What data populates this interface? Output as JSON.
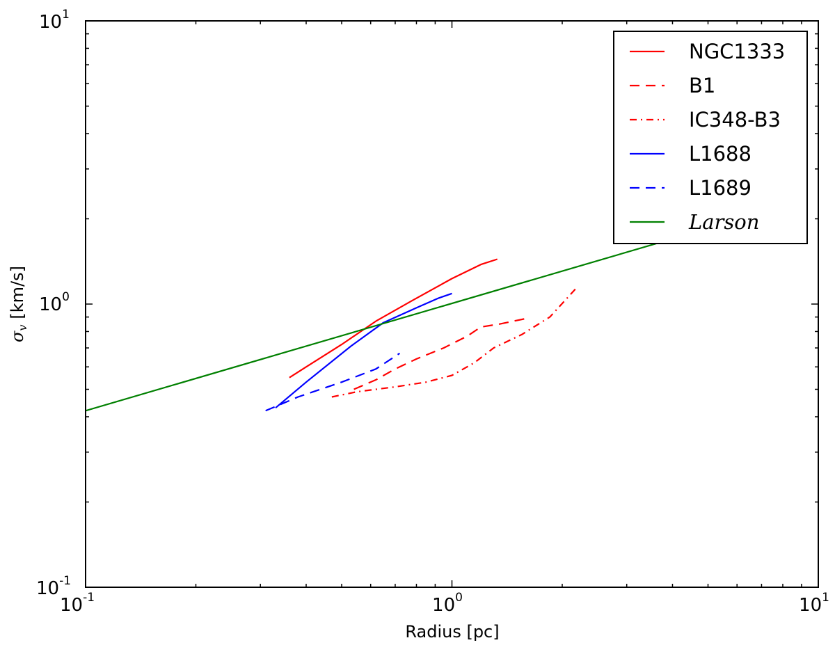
{
  "chart_data": {
    "type": "line",
    "title": "",
    "xlabel": "Radius [pc]",
    "ylabel_symbol": "σ",
    "ylabel_subscript": "v",
    "ylabel_units": "[km/s]",
    "xscale": "log",
    "yscale": "log",
    "xlim": [
      0.1,
      10
    ],
    "ylim": [
      0.1,
      10
    ],
    "x_tick_labels": [
      {
        "value": 0.1,
        "base": "10",
        "exp": "-1"
      },
      {
        "value": 1,
        "base": "10",
        "exp": "0"
      },
      {
        "value": 10,
        "base": "10",
        "exp": "1"
      }
    ],
    "y_tick_labels": [
      {
        "value": 0.1,
        "base": "10",
        "exp": "-1"
      },
      {
        "value": 1,
        "base": "10",
        "exp": "0"
      },
      {
        "value": 10,
        "base": "10",
        "exp": "1"
      }
    ],
    "legend_position": "upper-right",
    "series": [
      {
        "name": "NGC1333",
        "color": "#ff0000",
        "style": "solid",
        "x": [
          0.36,
          0.4,
          0.5,
          0.62,
          0.78,
          1.0,
          1.2,
          1.33
        ],
        "y": [
          0.55,
          0.6,
          0.72,
          0.87,
          1.03,
          1.23,
          1.38,
          1.44
        ]
      },
      {
        "name": "B1",
        "color": "#ff0000",
        "style": "dashed",
        "x": [
          0.54,
          0.62,
          0.7,
          0.8,
          0.95,
          1.1,
          1.2,
          1.35,
          1.6
        ],
        "y": [
          0.5,
          0.54,
          0.59,
          0.64,
          0.7,
          0.77,
          0.83,
          0.85,
          0.89
        ]
      },
      {
        "name": "IC348-B3",
        "color": "#ff0000",
        "style": "dashdot",
        "x": [
          0.47,
          0.55,
          0.7,
          0.85,
          1.0,
          1.15,
          1.3,
          1.55,
          1.85,
          2.2
        ],
        "y": [
          0.47,
          0.49,
          0.51,
          0.53,
          0.56,
          0.62,
          0.7,
          0.78,
          0.9,
          1.15
        ]
      },
      {
        "name": "L1688",
        "color": "#0000ff",
        "style": "solid",
        "x": [
          0.33,
          0.4,
          0.53,
          0.65,
          0.8,
          0.92,
          1.0
        ],
        "y": [
          0.43,
          0.53,
          0.71,
          0.86,
          0.97,
          1.05,
          1.09
        ]
      },
      {
        "name": "L1689",
        "color": "#0000ff",
        "style": "dashed",
        "x": [
          0.31,
          0.38,
          0.5,
          0.62,
          0.72
        ],
        "y": [
          0.42,
          0.47,
          0.53,
          0.59,
          0.67
        ]
      },
      {
        "name": "Larson",
        "color": "#008000",
        "style": "solid",
        "legend_italic": true,
        "x": [
          0.1,
          4.0
        ],
        "y": [
          0.42,
          1.7
        ]
      }
    ]
  }
}
